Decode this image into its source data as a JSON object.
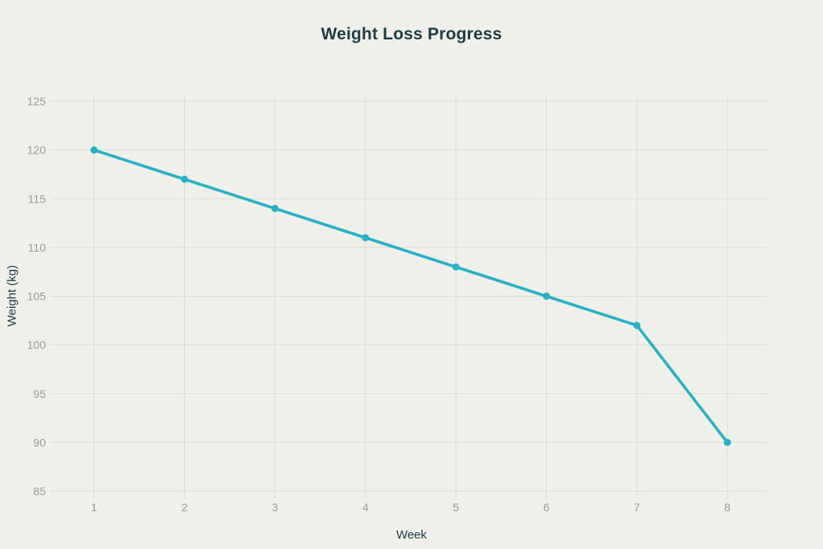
{
  "page": {
    "background_color": "#f0f0ea"
  },
  "chart_data": {
    "type": "line",
    "title": "Weight Loss Progress",
    "xlabel": "Week",
    "ylabel": "Weight (kg)",
    "x": [
      1,
      2,
      3,
      4,
      5,
      6,
      7,
      8
    ],
    "series": [
      {
        "name": "Weight",
        "values": [
          120,
          117,
          114,
          111,
          108,
          105,
          102,
          90
        ]
      }
    ],
    "xticks": [
      "1",
      "2",
      "3",
      "4",
      "5",
      "6",
      "7",
      "8"
    ],
    "yticks": [
      85,
      90,
      95,
      100,
      105,
      110,
      115,
      120,
      125
    ],
    "ylim": [
      85,
      125
    ],
    "xlim": [
      1,
      8
    ],
    "grid": "both",
    "legend": "none",
    "marker": "circle",
    "colors": {
      "line": "#29b2c6",
      "marker": "#29b2c6",
      "grid": "#dddcd4",
      "tick_label": "#9b9b95",
      "title_text": "#1d3b42",
      "background": "#f0f0ea"
    }
  }
}
